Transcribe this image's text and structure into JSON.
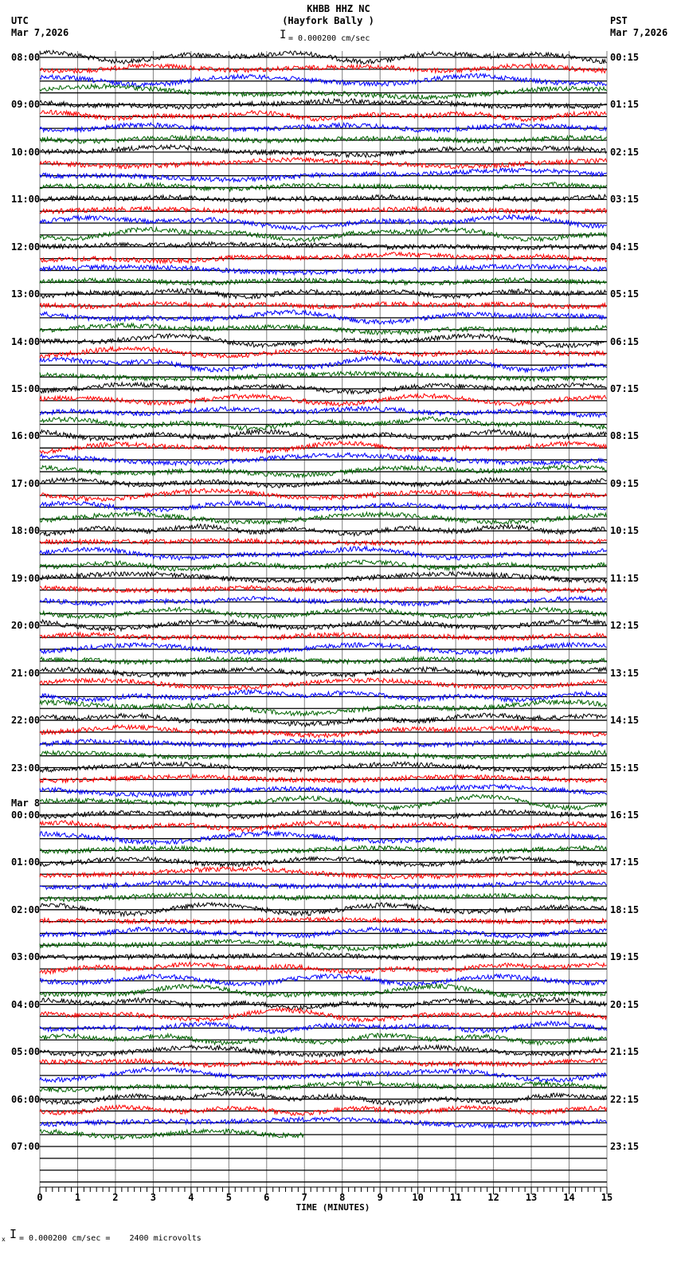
{
  "header": {
    "station": "KHBB HHZ NC",
    "site": "(Hayfork Bally )",
    "left_tz": "UTC",
    "left_date": "Mar 7,2026",
    "right_tz": "PST",
    "right_date": "Mar 7,2026",
    "scale_text": "= 0.000200 cm/sec"
  },
  "footer": {
    "scale_prefix": "x",
    "scale_text": "= 0.000200 cm/sec =    2400 microvolts"
  },
  "colors": {
    "trace": [
      "#000000",
      "#ff0000",
      "#0000ff",
      "#006400"
    ],
    "grid_vertical": "#808080",
    "baseline": "#000000"
  },
  "chart_data": {
    "type": "line",
    "title": "KHBB HHZ NC (Hayfork Bally )",
    "subtitle": "Helicorder seismogram, 4 traces per hour (15 min each)",
    "xlabel": "TIME (MINUTES)",
    "ylabel": "",
    "xlim": [
      0,
      15
    ],
    "x_ticks": [
      "0",
      "1",
      "2",
      "3",
      "4",
      "5",
      "6",
      "7",
      "8",
      "9",
      "10",
      "11",
      "12",
      "13",
      "14",
      "15"
    ],
    "minor_tick_interval_sec": 10,
    "grid": true,
    "trace_colors_cycle": [
      "black",
      "red",
      "blue",
      "green"
    ],
    "scale": "0.000200 cm/sec = 2400 microvolts",
    "left_labels_utc": [
      "08:00",
      "09:00",
      "10:00",
      "11:00",
      "12:00",
      "13:00",
      "14:00",
      "15:00",
      "16:00",
      "17:00",
      "18:00",
      "19:00",
      "20:00",
      "21:00",
      "22:00",
      "23:00",
      "Mar 8|00:00",
      "01:00",
      "02:00",
      "03:00",
      "04:00",
      "05:00",
      "06:00",
      "07:00"
    ],
    "right_labels_pst": [
      "00:15",
      "01:15",
      "02:15",
      "03:15",
      "04:15",
      "05:15",
      "06:15",
      "07:15",
      "08:15",
      "09:15",
      "10:15",
      "11:15",
      "12:15",
      "13:15",
      "14:15",
      "15:15",
      "16:15",
      "17:15",
      "18:15",
      "19:15",
      "20:15",
      "21:15",
      "22:15",
      "23:15"
    ],
    "total_trace_lines": 96,
    "data_trace_lines": 92,
    "last_trace_end_minute": 7.0
  }
}
